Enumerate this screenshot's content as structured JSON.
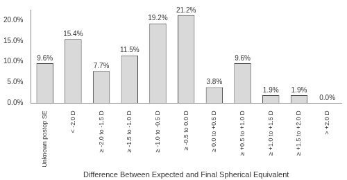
{
  "chart_data": {
    "type": "bar",
    "x_label": "Difference Between Expected and Final Spherical Equivalent",
    "categories": [
      "Unknown postop SE",
      "< -2.0 D",
      "≥ -2.0 to -1.5 D",
      "≥ -1.5 to -1.0 D",
      "≥ -1.0 to -0.5 D",
      "≥ -0.5 to 0.0 D",
      "≥ 0.0 to +0.5 D",
      "≥ +0.5 to +1.0 D",
      "≥ +1.0 to +1.5 D",
      "≥ +1.5 to +2.0 D",
      "> +2.0 D"
    ],
    "values": [
      9.6,
      15.4,
      7.7,
      11.5,
      19.2,
      21.2,
      3.8,
      9.6,
      1.9,
      1.9,
      0.0
    ],
    "value_labels": [
      "9.6%",
      "15.4%",
      "7.7%",
      "11.5%",
      "19.2%",
      "21.2%",
      "3.8%",
      "9.6%",
      "1.9%",
      "1.9%",
      "0.0%"
    ],
    "data_labels": true,
    "color": "#d9d9d9",
    "ylim": [
      0,
      22.5
    ],
    "yticks": [
      {
        "value": 0,
        "label": "0.0%"
      },
      {
        "value": 5,
        "label": "5.0%"
      },
      {
        "value": 10,
        "label": "10.0%"
      },
      {
        "value": 15,
        "label": "15.0%"
      },
      {
        "value": 20,
        "label": "20.0%"
      }
    ],
    "grid": false
  }
}
